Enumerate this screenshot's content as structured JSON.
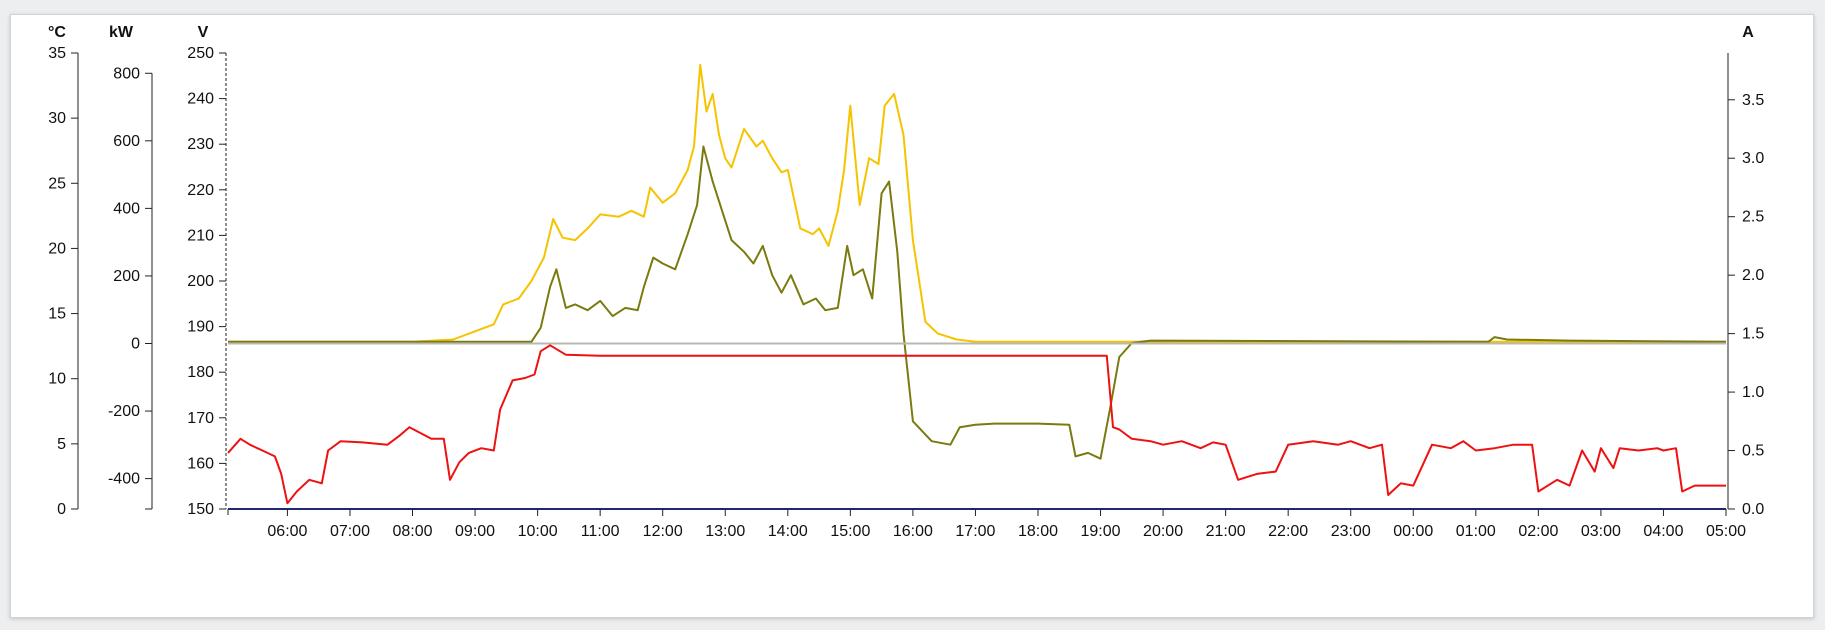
{
  "chart_data": {
    "type": "line",
    "axes": {
      "temp": {
        "unit": "°C",
        "range": [
          0,
          35
        ],
        "ticks": [
          0,
          5,
          10,
          15,
          20,
          25,
          30,
          35
        ]
      },
      "power": {
        "unit": "kW",
        "range": [
          -490,
          860
        ],
        "ticks": [
          -400,
          -200,
          0,
          200,
          400,
          600,
          800
        ]
      },
      "voltage": {
        "unit": "V",
        "range": [
          150,
          250
        ],
        "ticks": [
          150,
          160,
          170,
          180,
          190,
          200,
          210,
          220,
          230,
          240,
          250
        ]
      },
      "current": {
        "unit": "A",
        "range": [
          0,
          3.9
        ],
        "ticks": [
          "0.0",
          "0.5",
          "1.0",
          "1.5",
          "2.0",
          "2.5",
          "3.0",
          "3.5"
        ]
      }
    },
    "x_axis": {
      "range_hours": [
        5.05,
        29.0
      ],
      "tick_labels": [
        "06:00",
        "07:00",
        "08:00",
        "09:00",
        "10:00",
        "11:00",
        "12:00",
        "13:00",
        "14:00",
        "15:00",
        "16:00",
        "17:00",
        "18:00",
        "19:00",
        "20:00",
        "21:00",
        "22:00",
        "23:00",
        "00:00",
        "01:00",
        "02:00",
        "03:00",
        "04:00",
        "05:00"
      ],
      "tick_hours": [
        6,
        7,
        8,
        9,
        10,
        11,
        12,
        13,
        14,
        15,
        16,
        17,
        18,
        19,
        20,
        21,
        22,
        23,
        24,
        25,
        26,
        27,
        28,
        29
      ]
    },
    "series": [
      {
        "color": "#f5c400",
        "axis": "current",
        "points": [
          [
            5.05,
            1.43
          ],
          [
            8.0,
            1.43
          ],
          [
            8.65,
            1.45
          ],
          [
            9.0,
            1.52
          ],
          [
            9.3,
            1.58
          ],
          [
            9.45,
            1.75
          ],
          [
            9.7,
            1.8
          ],
          [
            9.9,
            1.95
          ],
          [
            10.1,
            2.15
          ],
          [
            10.25,
            2.48
          ],
          [
            10.4,
            2.32
          ],
          [
            10.6,
            2.3
          ],
          [
            10.8,
            2.4
          ],
          [
            11.0,
            2.52
          ],
          [
            11.3,
            2.5
          ],
          [
            11.5,
            2.55
          ],
          [
            11.7,
            2.5
          ],
          [
            11.8,
            2.75
          ],
          [
            12.0,
            2.62
          ],
          [
            12.2,
            2.7
          ],
          [
            12.4,
            2.9
          ],
          [
            12.5,
            3.1
          ],
          [
            12.6,
            3.8
          ],
          [
            12.7,
            3.4
          ],
          [
            12.8,
            3.55
          ],
          [
            12.9,
            3.2
          ],
          [
            13.0,
            3.0
          ],
          [
            13.1,
            2.92
          ],
          [
            13.3,
            3.25
          ],
          [
            13.5,
            3.1
          ],
          [
            13.6,
            3.15
          ],
          [
            13.75,
            3.0
          ],
          [
            13.9,
            2.88
          ],
          [
            14.0,
            2.9
          ],
          [
            14.2,
            2.4
          ],
          [
            14.4,
            2.35
          ],
          [
            14.5,
            2.4
          ],
          [
            14.65,
            2.25
          ],
          [
            14.8,
            2.55
          ],
          [
            14.9,
            2.9
          ],
          [
            15.0,
            3.45
          ],
          [
            15.15,
            2.6
          ],
          [
            15.3,
            3.0
          ],
          [
            15.45,
            2.95
          ],
          [
            15.55,
            3.45
          ],
          [
            15.7,
            3.55
          ],
          [
            15.85,
            3.2
          ],
          [
            16.0,
            2.3
          ],
          [
            16.2,
            1.6
          ],
          [
            16.4,
            1.5
          ],
          [
            16.7,
            1.45
          ],
          [
            17.0,
            1.43
          ],
          [
            19.0,
            1.43
          ],
          [
            29.0,
            1.43
          ]
        ]
      },
      {
        "color": "#7a7a10",
        "axis": "current",
        "points": [
          [
            5.05,
            1.43
          ],
          [
            9.9,
            1.43
          ],
          [
            10.05,
            1.55
          ],
          [
            10.2,
            1.9
          ],
          [
            10.3,
            2.05
          ],
          [
            10.45,
            1.72
          ],
          [
            10.6,
            1.75
          ],
          [
            10.8,
            1.7
          ],
          [
            11.0,
            1.78
          ],
          [
            11.2,
            1.65
          ],
          [
            11.4,
            1.72
          ],
          [
            11.6,
            1.7
          ],
          [
            11.7,
            1.9
          ],
          [
            11.85,
            2.15
          ],
          [
            12.0,
            2.1
          ],
          [
            12.2,
            2.05
          ],
          [
            12.4,
            2.35
          ],
          [
            12.55,
            2.6
          ],
          [
            12.65,
            3.1
          ],
          [
            12.8,
            2.8
          ],
          [
            12.95,
            2.55
          ],
          [
            13.1,
            2.3
          ],
          [
            13.3,
            2.2
          ],
          [
            13.45,
            2.1
          ],
          [
            13.6,
            2.25
          ],
          [
            13.75,
            2.0
          ],
          [
            13.9,
            1.85
          ],
          [
            14.05,
            2.0
          ],
          [
            14.25,
            1.75
          ],
          [
            14.45,
            1.8
          ],
          [
            14.6,
            1.7
          ],
          [
            14.8,
            1.72
          ],
          [
            14.95,
            2.25
          ],
          [
            15.05,
            2.0
          ],
          [
            15.2,
            2.05
          ],
          [
            15.35,
            1.8
          ],
          [
            15.5,
            2.7
          ],
          [
            15.62,
            2.8
          ],
          [
            15.75,
            2.2
          ],
          [
            15.85,
            1.5
          ],
          [
            16.0,
            0.75
          ],
          [
            16.3,
            0.58
          ],
          [
            16.6,
            0.55
          ],
          [
            16.75,
            0.7
          ],
          [
            17.0,
            0.72
          ],
          [
            17.3,
            0.73
          ],
          [
            18.0,
            0.73
          ],
          [
            18.5,
            0.72
          ],
          [
            18.6,
            0.45
          ],
          [
            18.8,
            0.48
          ],
          [
            19.0,
            0.43
          ],
          [
            19.15,
            0.85
          ],
          [
            19.3,
            1.3
          ],
          [
            19.5,
            1.42
          ],
          [
            19.8,
            1.44
          ],
          [
            25.2,
            1.43
          ],
          [
            25.3,
            1.47
          ],
          [
            25.5,
            1.45
          ],
          [
            26.5,
            1.44
          ],
          [
            29.0,
            1.43
          ]
        ]
      },
      {
        "color": "#ee1111",
        "axis": "current",
        "points": [
          [
            5.05,
            0.48
          ],
          [
            5.25,
            0.6
          ],
          [
            5.4,
            0.55
          ],
          [
            5.6,
            0.5
          ],
          [
            5.8,
            0.45
          ],
          [
            5.9,
            0.3
          ],
          [
            6.0,
            0.05
          ],
          [
            6.15,
            0.15
          ],
          [
            6.35,
            0.25
          ],
          [
            6.55,
            0.22
          ],
          [
            6.65,
            0.5
          ],
          [
            6.85,
            0.58
          ],
          [
            7.2,
            0.57
          ],
          [
            7.6,
            0.55
          ],
          [
            7.8,
            0.63
          ],
          [
            7.95,
            0.7
          ],
          [
            8.3,
            0.6
          ],
          [
            8.5,
            0.6
          ],
          [
            8.6,
            0.25
          ],
          [
            8.75,
            0.4
          ],
          [
            8.9,
            0.48
          ],
          [
            9.1,
            0.52
          ],
          [
            9.3,
            0.5
          ],
          [
            9.4,
            0.85
          ],
          [
            9.6,
            1.1
          ],
          [
            9.8,
            1.12
          ],
          [
            9.95,
            1.15
          ],
          [
            10.05,
            1.35
          ],
          [
            10.2,
            1.4
          ],
          [
            10.45,
            1.32
          ],
          [
            11.0,
            1.31
          ],
          [
            14.0,
            1.31
          ],
          [
            16.0,
            1.31
          ],
          [
            19.1,
            1.31
          ],
          [
            19.2,
            0.7
          ],
          [
            19.3,
            0.68
          ],
          [
            19.5,
            0.6
          ],
          [
            19.8,
            0.58
          ],
          [
            20.0,
            0.55
          ],
          [
            20.3,
            0.58
          ],
          [
            20.6,
            0.52
          ],
          [
            20.8,
            0.57
          ],
          [
            21.0,
            0.55
          ],
          [
            21.2,
            0.25
          ],
          [
            21.5,
            0.3
          ],
          [
            21.8,
            0.32
          ],
          [
            22.0,
            0.55
          ],
          [
            22.4,
            0.58
          ],
          [
            22.8,
            0.55
          ],
          [
            23.0,
            0.58
          ],
          [
            23.3,
            0.52
          ],
          [
            23.5,
            0.55
          ],
          [
            23.6,
            0.12
          ],
          [
            23.8,
            0.22
          ],
          [
            24.0,
            0.2
          ],
          [
            24.3,
            0.55
          ],
          [
            24.6,
            0.52
          ],
          [
            24.8,
            0.58
          ],
          [
            25.0,
            0.5
          ],
          [
            25.3,
            0.52
          ],
          [
            25.6,
            0.55
          ],
          [
            25.9,
            0.55
          ],
          [
            26.0,
            0.15
          ],
          [
            26.3,
            0.25
          ],
          [
            26.5,
            0.2
          ],
          [
            26.7,
            0.5
          ],
          [
            26.9,
            0.32
          ],
          [
            27.0,
            0.52
          ],
          [
            27.2,
            0.35
          ],
          [
            27.3,
            0.52
          ],
          [
            27.6,
            0.5
          ],
          [
            27.9,
            0.52
          ],
          [
            28.0,
            0.5
          ],
          [
            28.2,
            0.52
          ],
          [
            28.3,
            0.15
          ],
          [
            28.5,
            0.2
          ],
          [
            28.7,
            0.2
          ],
          [
            29.0,
            0.2
          ]
        ]
      },
      {
        "color": "#b8b8b0",
        "axis": "power",
        "points": [
          [
            5.05,
            0
          ],
          [
            29.0,
            0
          ]
        ]
      }
    ]
  }
}
